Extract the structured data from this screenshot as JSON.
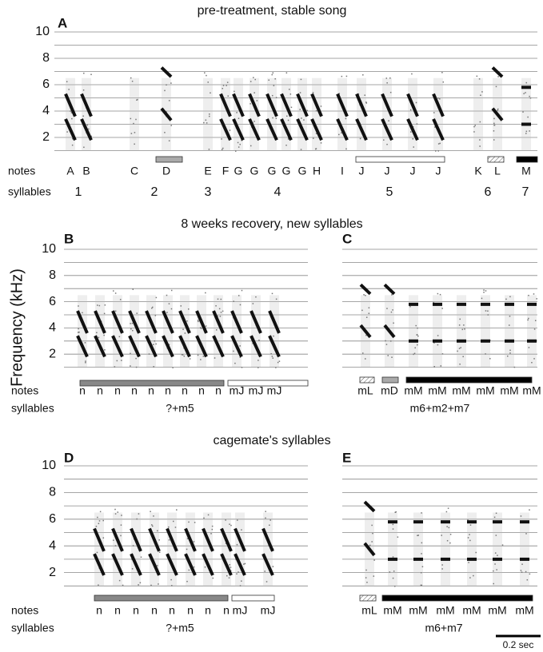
{
  "sections": [
    {
      "title": "pre-treatment, stable song"
    },
    {
      "title": "8 weeks recovery, new syllables"
    },
    {
      "title": "cagemate's syllables"
    }
  ],
  "y_axis_label": "Frequency (kHz)",
  "row_labels": {
    "notes": "notes",
    "syllables": "syllables"
  },
  "panels": [
    {
      "label": "A",
      "yticks": [
        2,
        4,
        6,
        8,
        10
      ],
      "notes": [
        "A",
        "B",
        "C",
        "D",
        "E",
        "F",
        "G",
        "G",
        "G",
        "G",
        "G",
        "H",
        "I",
        "J",
        "J",
        "J",
        "J",
        "K",
        "L",
        "M"
      ],
      "syllables": [
        "1",
        "2",
        "3",
        "4",
        "5",
        "6",
        "7"
      ]
    },
    {
      "label": "B",
      "yticks": [
        2,
        4,
        6,
        8,
        10
      ],
      "notes": [
        "n",
        "n",
        "n",
        "n",
        "n",
        "n",
        "n",
        "n",
        "n",
        "mJ",
        "mJ",
        "mJ"
      ],
      "syllables": [
        "?+m5"
      ]
    },
    {
      "label": "C",
      "notes": [
        "mL",
        "mD",
        "mM",
        "mM",
        "mM",
        "mM",
        "mM",
        "mM"
      ],
      "syllables": [
        "m6+m2+m7"
      ]
    },
    {
      "label": "D",
      "yticks": [
        2,
        4,
        6,
        8,
        10
      ],
      "notes": [
        "n",
        "n",
        "n",
        "n",
        "n",
        "n",
        "n",
        "n",
        "mJ",
        "mJ"
      ],
      "syllables": [
        "?+m5"
      ]
    },
    {
      "label": "E",
      "notes": [
        "mL",
        "mM",
        "mM",
        "mM",
        "mM",
        "mM",
        "mM"
      ],
      "syllables": [
        "m6+m7"
      ]
    }
  ],
  "scale_bar": "0.2 sec"
}
